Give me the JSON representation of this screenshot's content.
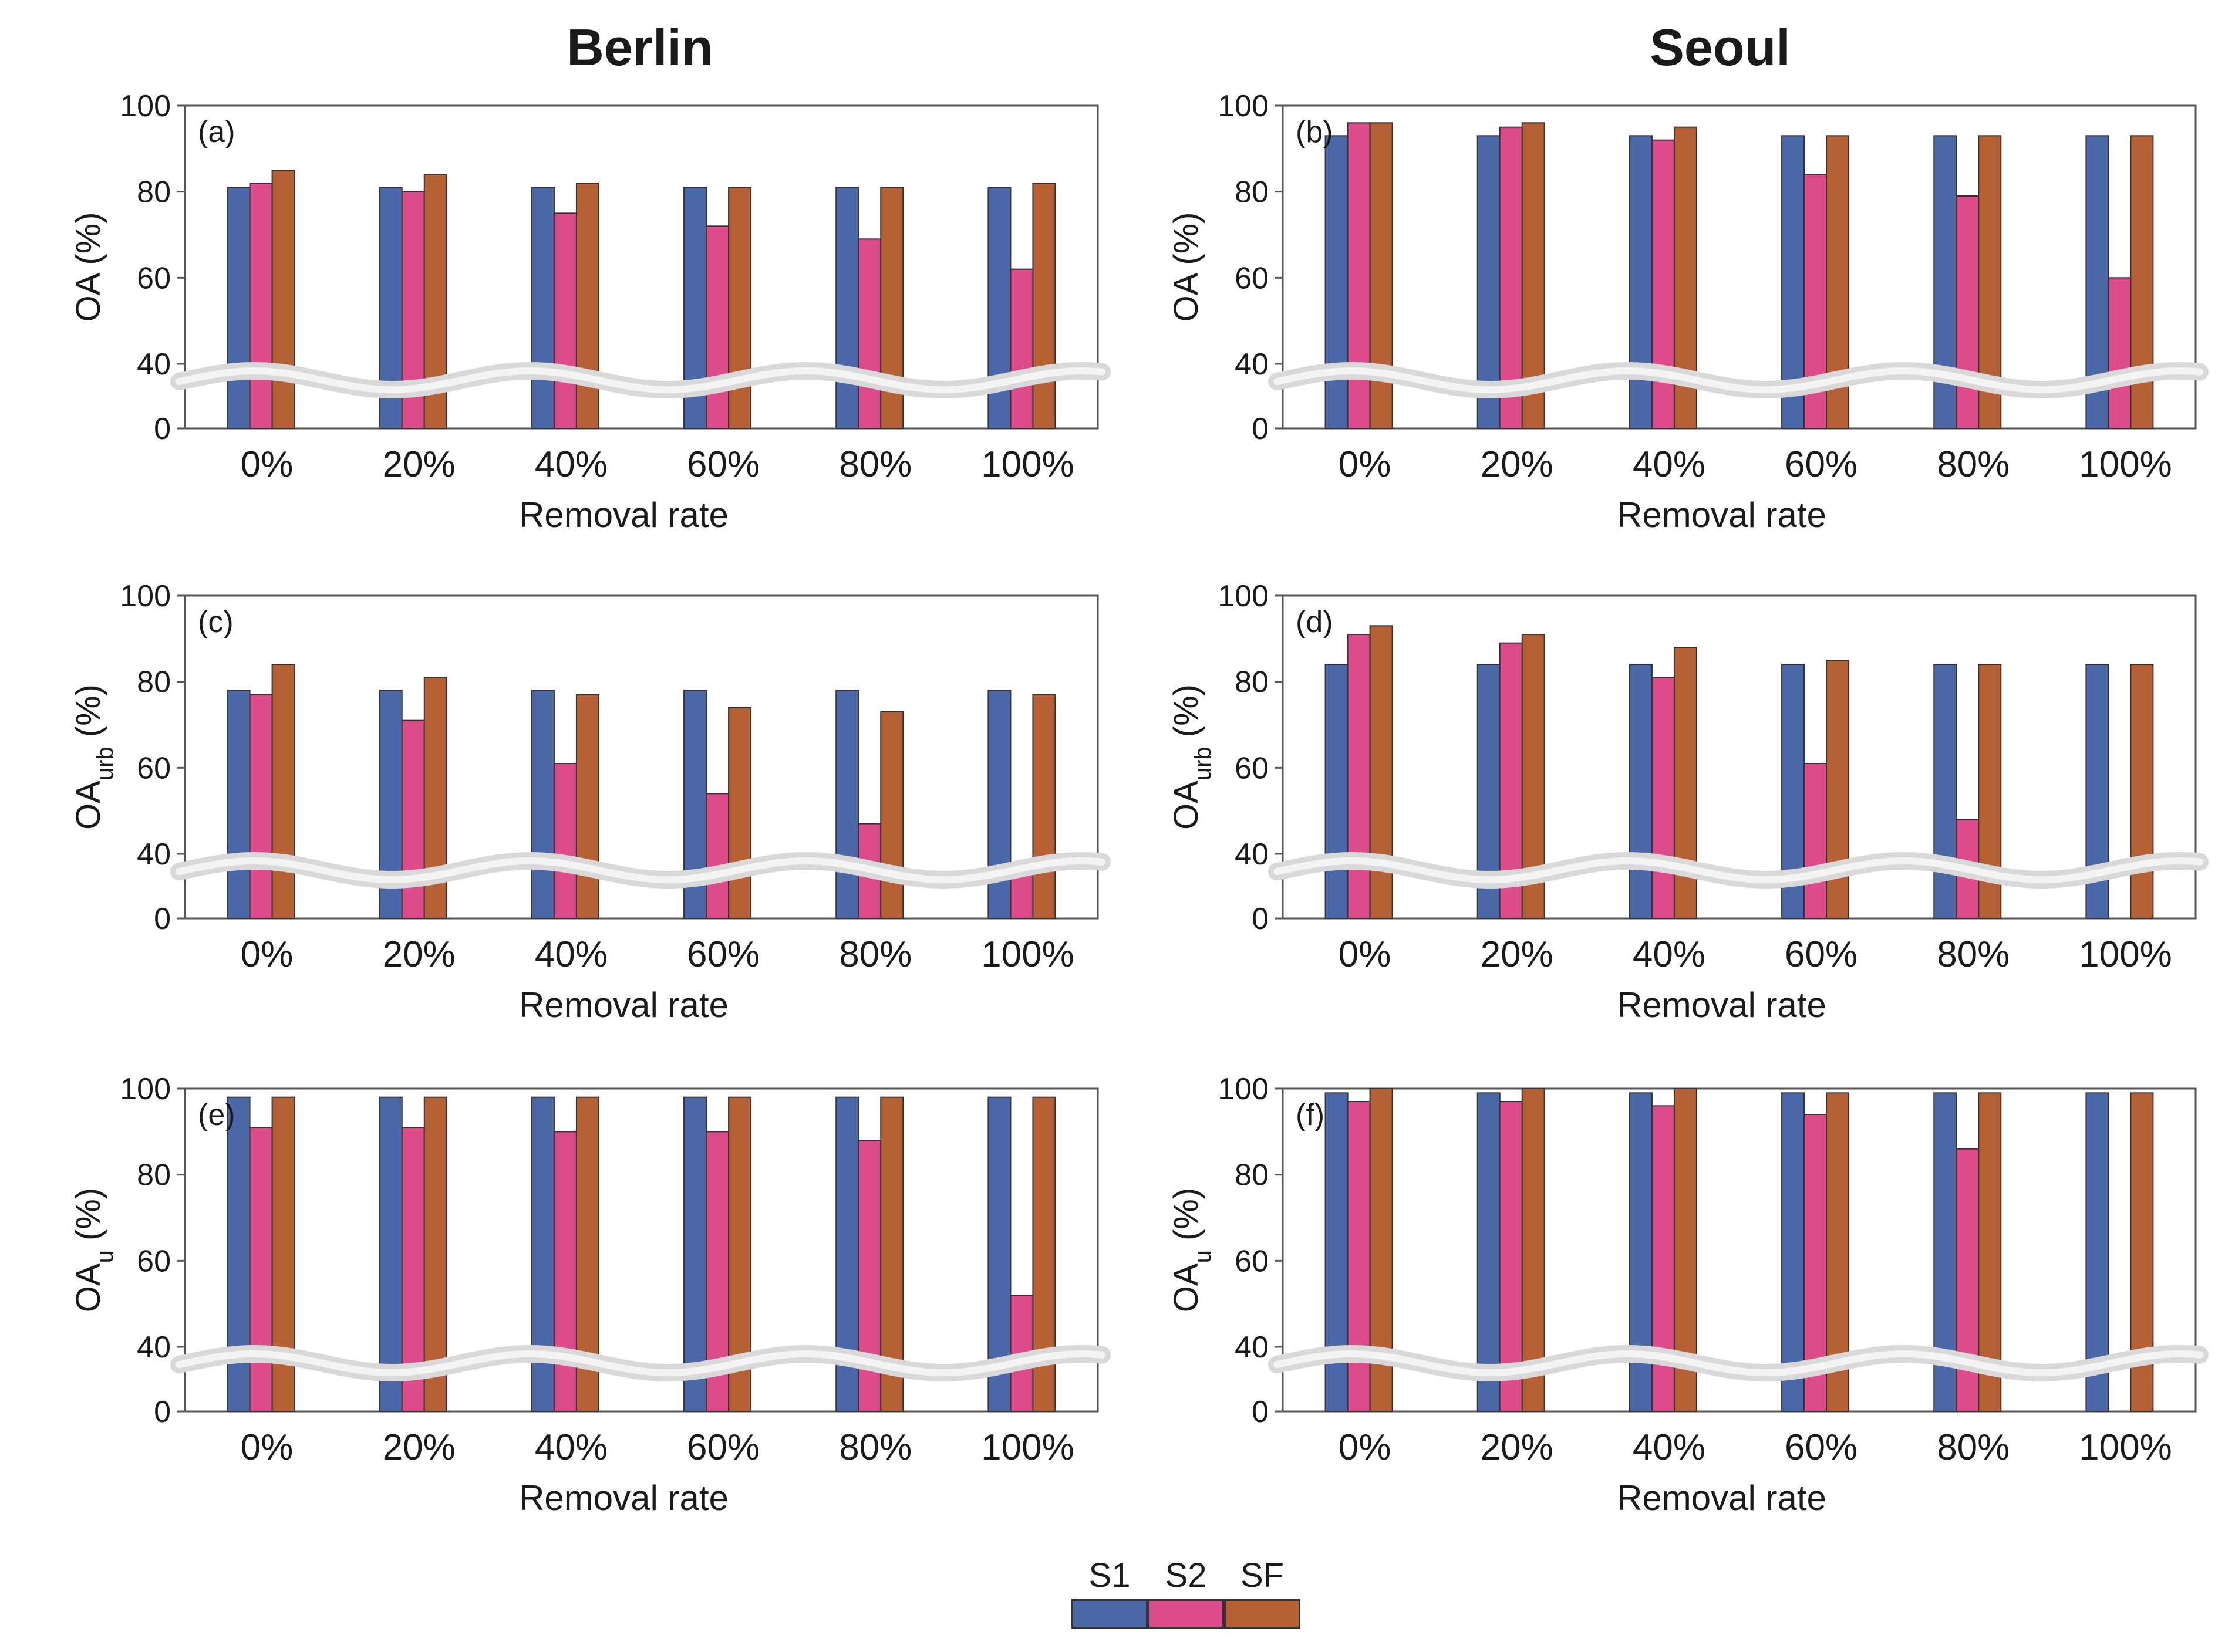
{
  "columns": {
    "left": "Berlin",
    "right": "Seoul"
  },
  "colors": {
    "S1": "#4a67a8",
    "S2": "#de4b8a",
    "SF": "#b56035",
    "break": "#d9d9d9"
  },
  "legend": [
    {
      "key": "S1",
      "label": "S1"
    },
    {
      "key": "S2",
      "label": "S2"
    },
    {
      "key": "SF",
      "label": "SF"
    }
  ],
  "chart_data": [
    {
      "id": "a",
      "panel_label": "(a)",
      "city": "Berlin",
      "type": "bar",
      "ylabel_main": "OA",
      "ylabel_sub": "",
      "ylabel_unit": " (%)",
      "xlabel": "Removal rate",
      "categories": [
        "0%",
        "20%",
        "40%",
        "60%",
        "80%",
        "100%"
      ],
      "yticks": [
        0,
        40,
        60,
        80,
        100
      ],
      "ylim": [
        0,
        100
      ],
      "axis_break": "0-40",
      "series": [
        {
          "name": "S1",
          "values": [
            81,
            81,
            81,
            81,
            81,
            81
          ]
        },
        {
          "name": "S2",
          "values": [
            82,
            80,
            75,
            72,
            69,
            62
          ]
        },
        {
          "name": "SF",
          "values": [
            85,
            84,
            82,
            81,
            81,
            82
          ]
        }
      ]
    },
    {
      "id": "b",
      "panel_label": "(b)",
      "city": "Seoul",
      "type": "bar",
      "ylabel_main": "OA",
      "ylabel_sub": "",
      "ylabel_unit": " (%)",
      "xlabel": "Removal rate",
      "categories": [
        "0%",
        "20%",
        "40%",
        "60%",
        "80%",
        "100%"
      ],
      "yticks": [
        0,
        40,
        60,
        80,
        100
      ],
      "ylim": [
        0,
        100
      ],
      "axis_break": "0-40",
      "series": [
        {
          "name": "S1",
          "values": [
            93,
            93,
            93,
            93,
            93,
            93
          ]
        },
        {
          "name": "S2",
          "values": [
            96,
            95,
            92,
            84,
            79,
            60
          ]
        },
        {
          "name": "SF",
          "values": [
            96,
            96,
            95,
            93,
            93,
            93
          ]
        }
      ]
    },
    {
      "id": "c",
      "panel_label": "(c)",
      "city": "Berlin",
      "type": "bar",
      "ylabel_main": "OA",
      "ylabel_sub": "urb",
      "ylabel_unit": " (%)",
      "xlabel": "Removal rate",
      "categories": [
        "0%",
        "20%",
        "40%",
        "60%",
        "80%",
        "100%"
      ],
      "yticks": [
        0,
        40,
        60,
        80,
        100
      ],
      "ylim": [
        0,
        100
      ],
      "axis_break": "0-40",
      "series": [
        {
          "name": "S1",
          "values": [
            78,
            78,
            78,
            78,
            78,
            78
          ]
        },
        {
          "name": "S2",
          "values": [
            77,
            71,
            61,
            54,
            47,
            31
          ]
        },
        {
          "name": "SF",
          "values": [
            84,
            81,
            77,
            74,
            73,
            77
          ]
        }
      ]
    },
    {
      "id": "d",
      "panel_label": "(d)",
      "city": "Seoul",
      "type": "bar",
      "ylabel_main": "OA",
      "ylabel_sub": "urb",
      "ylabel_unit": " (%)",
      "xlabel": "Removal rate",
      "categories": [
        "0%",
        "20%",
        "40%",
        "60%",
        "80%",
        "100%"
      ],
      "yticks": [
        0,
        40,
        60,
        80,
        100
      ],
      "ylim": [
        0,
        100
      ],
      "axis_break": "0-40",
      "series": [
        {
          "name": "S1",
          "values": [
            84,
            84,
            84,
            84,
            84,
            84
          ]
        },
        {
          "name": "S2",
          "values": [
            91,
            89,
            81,
            61,
            48,
            0
          ]
        },
        {
          "name": "SF",
          "values": [
            93,
            91,
            88,
            85,
            84,
            84
          ]
        }
      ]
    },
    {
      "id": "e",
      "panel_label": "(e)",
      "city": "Berlin",
      "type": "bar",
      "ylabel_main": "OA",
      "ylabel_sub": "u",
      "ylabel_unit": " (%)",
      "xlabel": "Removal rate",
      "categories": [
        "0%",
        "20%",
        "40%",
        "60%",
        "80%",
        "100%"
      ],
      "yticks": [
        0,
        40,
        60,
        80,
        100
      ],
      "ylim": [
        0,
        100
      ],
      "axis_break": "0-40",
      "series": [
        {
          "name": "S1",
          "values": [
            98,
            98,
            98,
            98,
            98,
            98
          ]
        },
        {
          "name": "S2",
          "values": [
            91,
            91,
            90,
            90,
            88,
            52
          ]
        },
        {
          "name": "SF",
          "values": [
            98,
            98,
            98,
            98,
            98,
            98
          ]
        }
      ]
    },
    {
      "id": "f",
      "panel_label": "(f)",
      "city": "Seoul",
      "type": "bar",
      "ylabel_main": "OA",
      "ylabel_sub": "u",
      "ylabel_unit": " (%)",
      "xlabel": "Removal rate",
      "categories": [
        "0%",
        "20%",
        "40%",
        "60%",
        "80%",
        "100%"
      ],
      "yticks": [
        0,
        40,
        60,
        80,
        100
      ],
      "ylim": [
        0,
        100
      ],
      "axis_break": "0-40",
      "series": [
        {
          "name": "S1",
          "values": [
            99,
            99,
            99,
            99,
            99,
            99
          ]
        },
        {
          "name": "S2",
          "values": [
            97,
            97,
            96,
            94,
            86,
            0
          ]
        },
        {
          "name": "SF",
          "values": [
            100,
            100,
            100,
            99,
            99,
            99
          ]
        }
      ]
    }
  ]
}
